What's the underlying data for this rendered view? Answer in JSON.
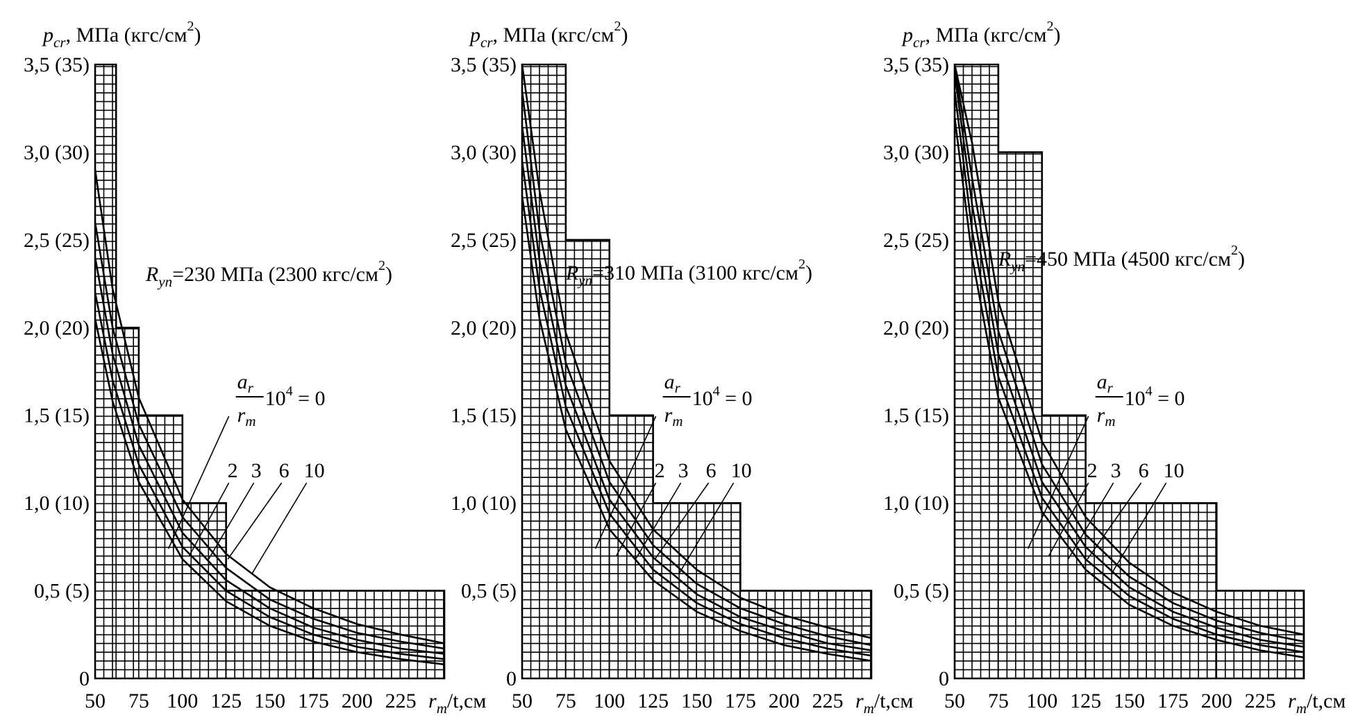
{
  "chart_data": [
    {
      "type": "line",
      "ylabel": {
        "symbol": "p",
        "subscript": "cr",
        "unit": ", МПа (кгс/см",
        "exp": "2",
        "close": ")"
      },
      "xlabel": {
        "symbol": "r",
        "subscript": "m",
        "unit": "/t,см"
      },
      "x_ticks": [
        "50",
        "75",
        "100",
        "125",
        "150",
        "175",
        "200",
        "225"
      ],
      "y_ticks": [
        "0",
        "0,5 (5)",
        "1,0 (10)",
        "1,5 (15)",
        "2,0 (20)",
        "2,5 (25)",
        "3,0 (30)",
        "3,5 (35)"
      ],
      "xlim": [
        50,
        250
      ],
      "ylim": [
        0,
        3.5
      ],
      "steps": [
        [
          50,
          62,
          3.5
        ],
        [
          62,
          75,
          2.0
        ],
        [
          75,
          100,
          1.5
        ],
        [
          100,
          125,
          1.0
        ],
        [
          125,
          175,
          0.5
        ],
        [
          175,
          250,
          0.5
        ]
      ],
      "ryp_label": {
        "symbol": "R",
        "subscript": "yп",
        "text": "=230 МПа (2300 кгс/см",
        "exp": "2",
        "close": ")"
      },
      "param_label": {
        "num": "a",
        "num_sub": "r",
        "den": "r",
        "den_sub": "m",
        "text": "10",
        "exp": "4",
        "eq": " = 0"
      },
      "param_values": [
        "2",
        "3",
        "6",
        "10"
      ],
      "series": [
        {
          "label": "0",
          "x": [
            50,
            60,
            75,
            100,
            125,
            150,
            175,
            200,
            225,
            250
          ],
          "y": [
            2.05,
            1.58,
            1.12,
            0.68,
            0.44,
            0.3,
            0.21,
            0.15,
            0.11,
            0.08
          ]
        },
        {
          "label": "2",
          "x": [
            50,
            60,
            75,
            100,
            125,
            150,
            175,
            200,
            225,
            250
          ],
          "y": [
            2.2,
            1.7,
            1.22,
            0.75,
            0.5,
            0.35,
            0.25,
            0.18,
            0.14,
            0.11
          ]
        },
        {
          "label": "3",
          "x": [
            50,
            60,
            75,
            100,
            125,
            150,
            175,
            200,
            225,
            250
          ],
          "y": [
            2.4,
            1.85,
            1.33,
            0.83,
            0.56,
            0.4,
            0.29,
            0.22,
            0.17,
            0.14
          ]
        },
        {
          "label": "6",
          "x": [
            50,
            60,
            75,
            100,
            125,
            150,
            175,
            200,
            225,
            250
          ],
          "y": [
            2.6,
            2.0,
            1.45,
            0.92,
            0.63,
            0.45,
            0.34,
            0.26,
            0.21,
            0.17
          ]
        },
        {
          "label": "10",
          "x": [
            50,
            60,
            75,
            100,
            125,
            150,
            175,
            200,
            225,
            250
          ],
          "y": [
            2.9,
            2.22,
            1.6,
            1.02,
            0.71,
            0.52,
            0.4,
            0.31,
            0.25,
            0.2
          ]
        }
      ]
    },
    {
      "type": "line",
      "ylabel": {
        "symbol": "p",
        "subscript": "cr",
        "unit": ", МПа (кгс/см",
        "exp": "2",
        "close": ")"
      },
      "xlabel": {
        "symbol": "r",
        "subscript": "m",
        "unit": "/t,см"
      },
      "x_ticks": [
        "50",
        "75",
        "100",
        "125",
        "150",
        "175",
        "200",
        "225"
      ],
      "y_ticks": [
        "0",
        "0,5 (5)",
        "1,0 (10)",
        "1,5 (15)",
        "2,0 (20)",
        "2,5 (25)",
        "3,0 (30)",
        "3,5 (35)"
      ],
      "xlim": [
        50,
        250
      ],
      "ylim": [
        0,
        3.5
      ],
      "steps": [
        [
          50,
          75,
          3.5
        ],
        [
          75,
          100,
          2.5
        ],
        [
          100,
          125,
          1.5
        ],
        [
          125,
          175,
          1.0
        ],
        [
          175,
          250,
          0.5
        ]
      ],
      "ryp_label": {
        "symbol": "R",
        "subscript": "yп",
        "text": "=310 МПа (3100 кгс/см",
        "exp": "2",
        "close": ")"
      },
      "param_label": {
        "num": "a",
        "num_sub": "r",
        "den": "r",
        "den_sub": "m",
        "text": "10",
        "exp": "4",
        "eq": " = 0"
      },
      "param_values": [
        "2",
        "3",
        "6",
        "10"
      ],
      "series": [
        {
          "label": "0",
          "x": [
            50,
            60,
            75,
            100,
            125,
            150,
            175,
            200,
            225,
            250
          ],
          "y": [
            2.75,
            2.05,
            1.42,
            0.85,
            0.56,
            0.38,
            0.27,
            0.19,
            0.14,
            0.1
          ]
        },
        {
          "label": "2",
          "x": [
            50,
            60,
            75,
            100,
            125,
            150,
            175,
            200,
            225,
            250
          ],
          "y": [
            2.95,
            2.22,
            1.55,
            0.94,
            0.62,
            0.43,
            0.31,
            0.23,
            0.17,
            0.13
          ]
        },
        {
          "label": "3",
          "x": [
            50,
            60,
            75,
            100,
            125,
            150,
            175,
            200,
            225,
            250
          ],
          "y": [
            3.15,
            2.38,
            1.67,
            1.02,
            0.69,
            0.48,
            0.35,
            0.27,
            0.2,
            0.16
          ]
        },
        {
          "label": "6",
          "x": [
            50,
            60,
            75,
            100,
            125,
            150,
            175,
            200,
            225,
            250
          ],
          "y": [
            3.35,
            2.55,
            1.8,
            1.12,
            0.76,
            0.54,
            0.4,
            0.31,
            0.24,
            0.19
          ]
        },
        {
          "label": "10",
          "x": [
            50,
            60,
            75,
            100,
            125,
            150,
            175,
            200,
            225,
            250
          ],
          "y": [
            3.5,
            2.78,
            1.97,
            1.24,
            0.85,
            0.62,
            0.46,
            0.36,
            0.29,
            0.23
          ]
        }
      ]
    },
    {
      "type": "line",
      "ylabel": {
        "symbol": "p",
        "subscript": "cr",
        "unit": ", МПа (кгс/см",
        "exp": "2",
        "close": ")"
      },
      "xlabel": {
        "symbol": "r",
        "subscript": "m",
        "unit": "/t,см"
      },
      "x_ticks": [
        "50",
        "75",
        "100",
        "125",
        "150",
        "175",
        "200",
        "225"
      ],
      "y_ticks": [
        "0",
        "0,5 (5)",
        "1,0 (10)",
        "1,5 (15)",
        "2,0 (20)",
        "2,5 (25)",
        "3,0 (30)",
        "3,5 (35)"
      ],
      "xlim": [
        50,
        250
      ],
      "ylim": [
        0,
        3.5
      ],
      "steps": [
        [
          50,
          75,
          3.5
        ],
        [
          75,
          100,
          3.0
        ],
        [
          100,
          125,
          1.5
        ],
        [
          125,
          200,
          1.0
        ],
        [
          200,
          250,
          0.5
        ]
      ],
      "ryp_label": {
        "symbol": "R",
        "subscript": "yп",
        "text": "=450 МПа (4500 кгс/см",
        "exp": "2",
        "close": ")"
      },
      "param_label": {
        "num": "a",
        "num_sub": "r",
        "den": "r",
        "den_sub": "m",
        "text": "10",
        "exp": "4",
        "eq": " = 0"
      },
      "param_values": [
        "2",
        "3",
        "6",
        "10"
      ],
      "series": [
        {
          "label": "0",
          "x": [
            50,
            60,
            75,
            100,
            125,
            150,
            175,
            200,
            225,
            250
          ],
          "y": [
            3.2,
            2.4,
            1.6,
            0.95,
            0.62,
            0.42,
            0.3,
            0.22,
            0.16,
            0.12
          ]
        },
        {
          "label": "2",
          "x": [
            50,
            60,
            75,
            100,
            125,
            150,
            175,
            200,
            225,
            250
          ],
          "y": [
            3.35,
            2.55,
            1.72,
            1.03,
            0.68,
            0.47,
            0.34,
            0.25,
            0.19,
            0.15
          ]
        },
        {
          "label": "3",
          "x": [
            50,
            60,
            75,
            100,
            125,
            150,
            175,
            200,
            225,
            250
          ],
          "y": [
            3.45,
            2.7,
            1.85,
            1.12,
            0.75,
            0.52,
            0.38,
            0.29,
            0.22,
            0.18
          ]
        },
        {
          "label": "6",
          "x": [
            50,
            60,
            75,
            100,
            125,
            150,
            175,
            200,
            225,
            250
          ],
          "y": [
            3.5,
            2.85,
            1.98,
            1.22,
            0.82,
            0.58,
            0.43,
            0.33,
            0.26,
            0.21
          ]
        },
        {
          "label": "10",
          "x": [
            50,
            60,
            75,
            100,
            125,
            150,
            175,
            200,
            225,
            250
          ],
          "y": [
            3.5,
            3.05,
            2.15,
            1.35,
            0.92,
            0.66,
            0.49,
            0.38,
            0.3,
            0.25
          ]
        }
      ]
    }
  ]
}
